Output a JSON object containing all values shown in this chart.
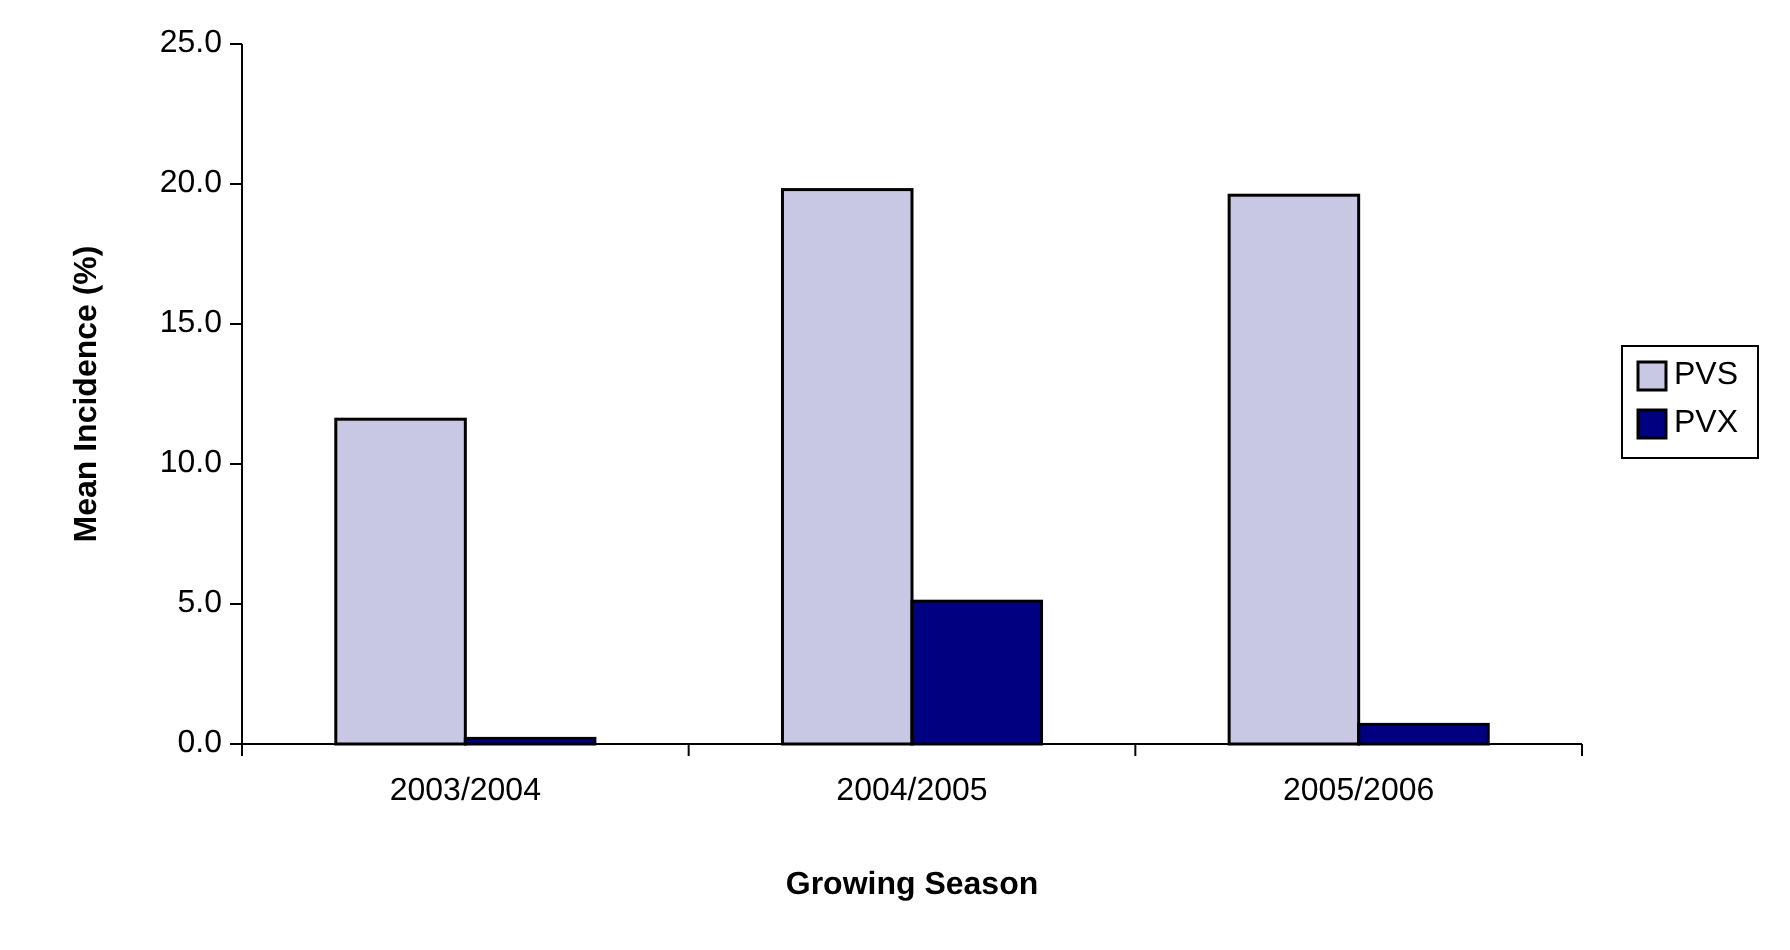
{
  "chart_data": {
    "type": "bar",
    "xlabel": "Growing Season",
    "ylabel": "Mean Incidence (%)",
    "categories": [
      "2003/2004",
      "2004/2005",
      "2005/2006"
    ],
    "series": [
      {
        "name": "PVS",
        "color": "#c8c8e4",
        "values": [
          11.6,
          19.8,
          19.6
        ]
      },
      {
        "name": "PVX",
        "color": "#000080",
        "values": [
          0.2,
          5.1,
          0.7
        ]
      }
    ],
    "ylim": [
      0,
      25
    ],
    "yticks": [
      {
        "value": 0,
        "label": "0.0"
      },
      {
        "value": 5,
        "label": "5.0"
      },
      {
        "value": 10,
        "label": "10.0"
      },
      {
        "value": 15,
        "label": "15.0"
      },
      {
        "value": 20,
        "label": "20.0"
      },
      {
        "value": 25,
        "label": "25.0"
      }
    ],
    "grid": false,
    "legend": "right"
  }
}
